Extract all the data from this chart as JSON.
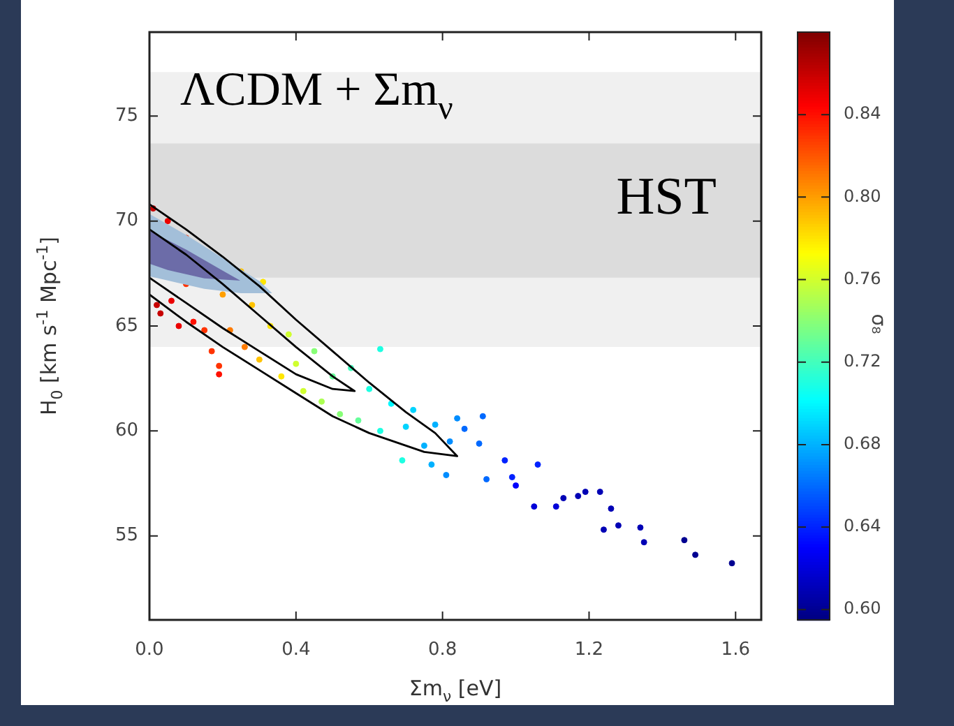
{
  "chart_data": {
    "type": "scatter",
    "xlabel": "Σm$_{ν}$ [eV]",
    "ylabel": "H$_{0}$ [km s$^{-1}$ Mpc$^{-1}$]",
    "clabel": "σ₈",
    "xlim": [
      0,
      1.67
    ],
    "xticks": [
      {
        "value": 0,
        "label": "0.0"
      },
      0.4,
      0.8,
      1.2,
      1.6
    ],
    "ylim": [
      51,
      79
    ],
    "yticks": [
      55,
      60,
      65,
      70,
      75
    ],
    "clim": [
      0.595,
      0.88
    ],
    "cticks": [
      {
        "value": 0.6,
        "label": "0.60"
      },
      0.64,
      0.68,
      0.72,
      0.76,
      {
        "value": 0.8,
        "label": "0.80"
      },
      0.84
    ],
    "grid": false,
    "legend": false,
    "annotations": [
      "ΛCDM + Σm$_{ν}$"
    ],
    "bands": [
      {
        "axis": "y",
        "from": 64.0,
        "to": 77.1,
        "color": "#f0f0f0"
      },
      {
        "axis": "y",
        "from": 67.3,
        "to": 73.7,
        "color": "#dcdcdc",
        "label": "HST"
      }
    ],
    "series": [
      {
        "marker": "circle",
        "colors": [
          "#c70000",
          "#c70000",
          "#c70000",
          "#eb0000",
          "#eb0000",
          "#eb0000",
          "#ff3300",
          "#ff3300",
          "#ff1000",
          "#ff3300",
          "#ff3300",
          "#ff3300",
          "#ff1000",
          "#ff9f00",
          "#ff7b00",
          "#ffc300",
          "#ff7b00",
          "#ffc300",
          "#ffc300",
          "#ffe600",
          "#ffe600",
          "#ffe600",
          "#d0ff2f",
          "#d0ff2f",
          "#d0ff2f",
          "#88ff77",
          "#acff53",
          "#65ff9a",
          "#88ff77",
          "#41ffbe",
          "#65ff9a",
          "#1dffe2",
          "#1dffe2",
          "#1dffe2",
          "#00f8ff",
          "#1dffe2",
          "#00d4ff",
          "#00d4ff",
          "#00b1ff",
          "#00b1ff",
          "#00b1ff",
          "#008dff",
          "#008dff",
          "#008dff",
          "#0069ff",
          "#0069ff",
          "#0069ff",
          "#0069ff",
          "#0022ff",
          "#0022ff",
          "#0000fd",
          "#0000d9",
          "#0022ff",
          "#0000d9",
          "#0000b5",
          "#0000b5",
          "#0000b5",
          "#0000b5",
          "#0000b5",
          "#0000b5",
          "#0000b5",
          "#0000b5",
          "#0000b5",
          "#000091",
          "#000091",
          "#000091"
        ],
        "x": [
          0.01,
          0.02,
          0.03,
          0.05,
          0.06,
          0.08,
          0.1,
          0.1,
          0.12,
          0.15,
          0.17,
          0.19,
          0.19,
          0.2,
          0.22,
          0.25,
          0.26,
          0.28,
          0.3,
          0.31,
          0.33,
          0.36,
          0.38,
          0.4,
          0.42,
          0.45,
          0.47,
          0.5,
          0.52,
          0.55,
          0.57,
          0.6,
          0.63,
          0.63,
          0.66,
          0.69,
          0.7,
          0.72,
          0.75,
          0.77,
          0.78,
          0.81,
          0.82,
          0.84,
          0.86,
          0.9,
          0.91,
          0.92,
          0.97,
          0.99,
          1.0,
          1.05,
          1.06,
          1.11,
          1.13,
          1.17,
          1.19,
          1.23,
          1.24,
          1.26,
          1.28,
          1.34,
          1.35,
          1.46,
          1.49,
          1.59
        ],
        "values": [
          70.6,
          66.0,
          65.6,
          70.0,
          66.2,
          65.0,
          69.2,
          67.0,
          65.2,
          64.8,
          63.8,
          63.1,
          62.7,
          66.5,
          64.8,
          67.6,
          64.0,
          66.0,
          63.4,
          67.1,
          65.0,
          62.6,
          64.6,
          63.2,
          61.9,
          63.8,
          61.4,
          62.6,
          60.8,
          63.0,
          60.5,
          62.0,
          63.9,
          60.0,
          61.3,
          58.6,
          60.2,
          61.0,
          59.3,
          58.4,
          60.3,
          57.9,
          59.5,
          60.6,
          60.1,
          59.4,
          60.7,
          57.7,
          58.6,
          57.8,
          57.4,
          56.4,
          58.4,
          56.4,
          56.8,
          56.9,
          57.1,
          57.1,
          55.3,
          56.3,
          55.5,
          55.4,
          54.7,
          54.8,
          54.1,
          53.7
        ],
        "cvalues": [
          0.86,
          0.86,
          0.86,
          0.85,
          0.85,
          0.85,
          0.83,
          0.83,
          0.84,
          0.83,
          0.83,
          0.83,
          0.84,
          0.8,
          0.81,
          0.79,
          0.81,
          0.79,
          0.79,
          0.78,
          0.78,
          0.78,
          0.76,
          0.76,
          0.76,
          0.74,
          0.75,
          0.73,
          0.74,
          0.72,
          0.73,
          0.71,
          0.71,
          0.71,
          0.7,
          0.71,
          0.69,
          0.69,
          0.68,
          0.68,
          0.68,
          0.67,
          0.67,
          0.67,
          0.66,
          0.66,
          0.66,
          0.66,
          0.64,
          0.64,
          0.63,
          0.62,
          0.64,
          0.62,
          0.61,
          0.61,
          0.61,
          0.61,
          0.61,
          0.61,
          0.61,
          0.61,
          0.61,
          0.6,
          0.6,
          0.6
        ]
      },
      {
        "type": "area",
        "color": "#a3bfd9",
        "x": [
          0,
          0.1,
          0.2,
          0.3,
          0.33,
          0.25,
          0.15,
          0.05,
          0,
          0
        ],
        "values": [
          70.3,
          69.3,
          68.2,
          67.1,
          66.6,
          66.6,
          66.8,
          67.2,
          67.4,
          70.3
        ]
      },
      {
        "type": "area",
        "color": "#6c6ca8",
        "x": [
          0,
          0.1,
          0.2,
          0.24,
          0.15,
          0.05,
          0,
          0
        ],
        "values": [
          69.5,
          68.6,
          67.6,
          67.2,
          67.3,
          67.7,
          68.0,
          69.5
        ]
      },
      {
        "type": "line",
        "color": "#000000",
        "x": [
          0,
          0.1,
          0.2,
          0.3,
          0.4,
          0.5,
          0.6,
          0.7,
          0.78,
          0.84,
          0.75,
          0.6,
          0.5,
          0.4,
          0.3,
          0.2,
          0.1,
          0
        ],
        "values": [
          70.8,
          69.6,
          68.3,
          66.9,
          65.3,
          63.8,
          62.3,
          60.9,
          59.9,
          58.8,
          59.0,
          59.9,
          60.7,
          61.8,
          62.9,
          64.0,
          65.2,
          66.5
        ]
      },
      {
        "type": "line",
        "color": "#000000",
        "x": [
          0,
          0.1,
          0.2,
          0.3,
          0.4,
          0.5,
          0.56,
          0.5,
          0.4,
          0.3,
          0.2,
          0.1,
          0
        ],
        "values": [
          69.6,
          68.4,
          67.0,
          65.5,
          64.0,
          62.6,
          61.9,
          62.0,
          62.7,
          63.8,
          64.9,
          66.1,
          67.3
        ]
      }
    ]
  }
}
